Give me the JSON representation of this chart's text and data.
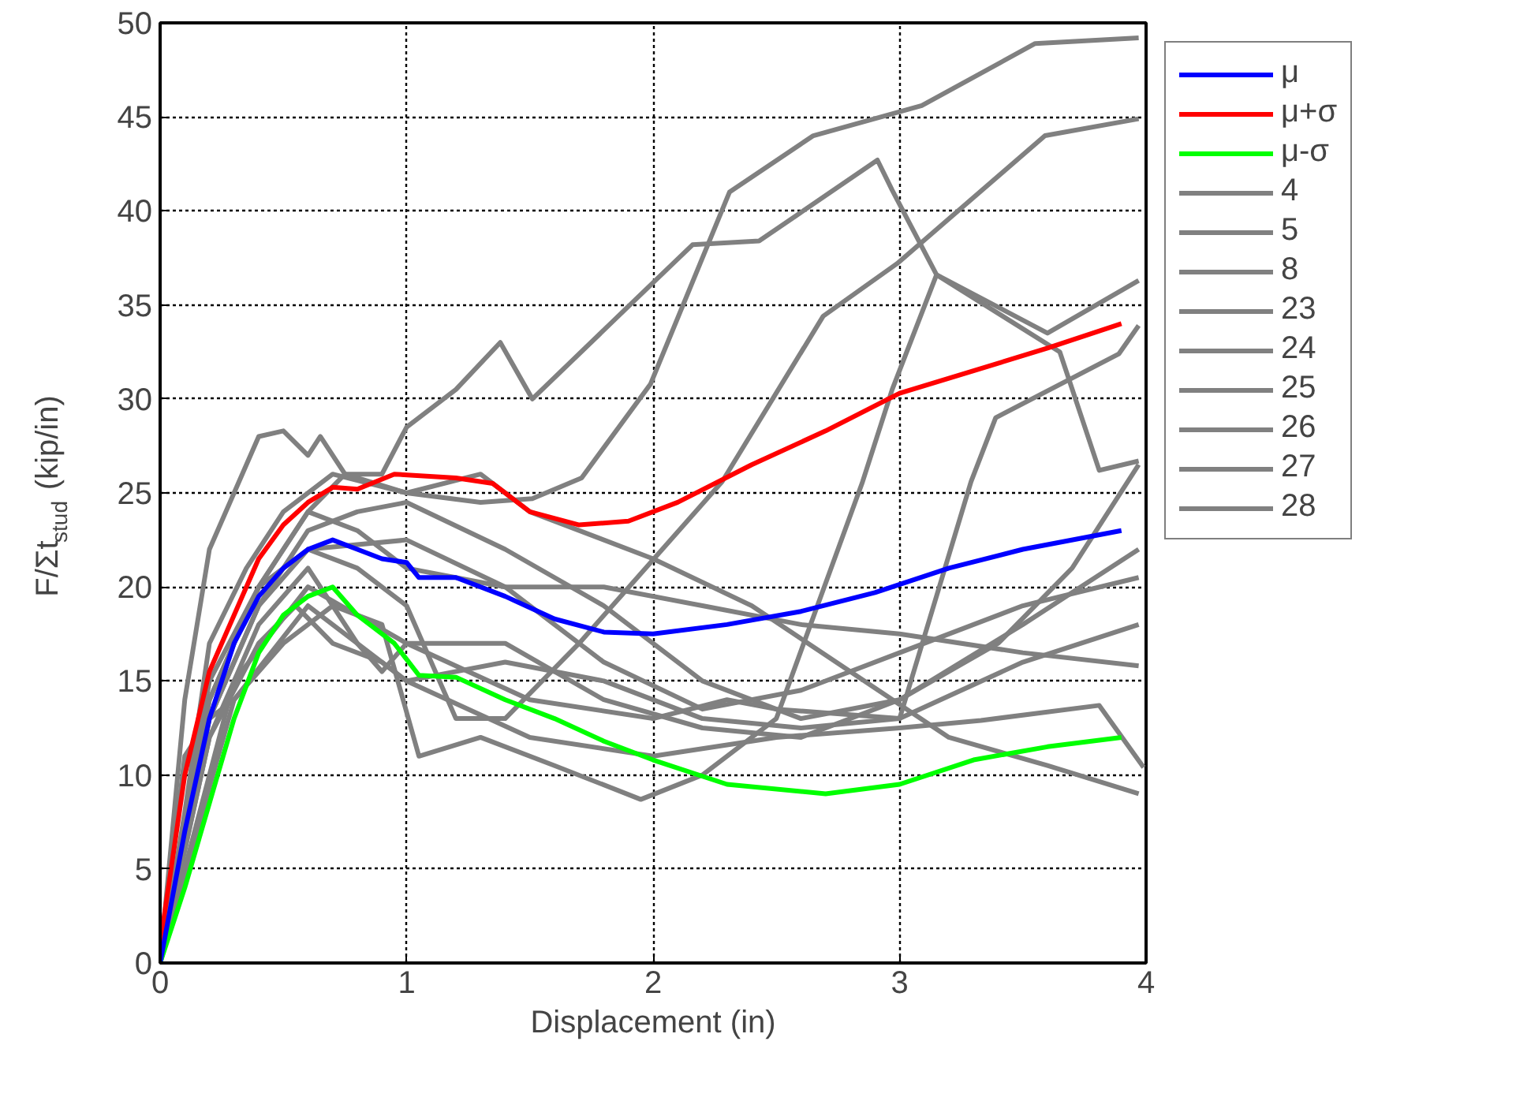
{
  "chart_data": {
    "type": "line",
    "xlabel": "Displacement (in)",
    "ylabel": "F/Σt$_{stud}$ (kip/in)",
    "xlim": [
      0,
      4
    ],
    "ylim": [
      0,
      50
    ],
    "xticks": [
      0,
      1,
      2,
      3,
      4
    ],
    "yticks": [
      0,
      5,
      10,
      15,
      20,
      25,
      30,
      35,
      40,
      45,
      50
    ],
    "grid": true,
    "legend": "right",
    "marker": "none",
    "line_style": "solid",
    "series": [
      {
        "name": "μ",
        "color": "#0000ff",
        "x": [
          0,
          0.1,
          0.2,
          0.3,
          0.4,
          0.5,
          0.6,
          0.7,
          0.8,
          0.9,
          1.0,
          1.05,
          1.2,
          1.4,
          1.6,
          1.8,
          2.0,
          2.3,
          2.6,
          2.9,
          3.2,
          3.5,
          3.9
        ],
        "values": [
          0,
          7,
          13,
          17,
          19.5,
          21,
          22,
          22.5,
          22,
          21.5,
          21.3,
          20.5,
          20.5,
          19.5,
          18.3,
          17.6,
          17.5,
          18,
          18.7,
          19.7,
          21,
          22,
          23
        ]
      },
      {
        "name": "μ+σ",
        "color": "#ff0000",
        "x": [
          0,
          0.1,
          0.2,
          0.3,
          0.4,
          0.5,
          0.6,
          0.7,
          0.8,
          0.95,
          1.2,
          1.35,
          1.5,
          1.7,
          1.9,
          2.1,
          2.4,
          2.7,
          3.0,
          3.3,
          3.6,
          3.9
        ],
        "values": [
          1,
          10,
          15.5,
          18.5,
          21.5,
          23.3,
          24.5,
          25.3,
          25.2,
          26,
          25.8,
          25.5,
          24,
          23.3,
          23.5,
          24.5,
          26.5,
          28.3,
          30.3,
          31.5,
          32.7,
          34
        ]
      },
      {
        "name": "μ-σ",
        "color": "#00ff00",
        "x": [
          0,
          0.1,
          0.2,
          0.3,
          0.4,
          0.5,
          0.6,
          0.7,
          0.8,
          0.95,
          1.05,
          1.2,
          1.4,
          1.6,
          1.8,
          2.0,
          2.3,
          2.7,
          3.0,
          3.3,
          3.6,
          3.9
        ],
        "values": [
          0,
          4,
          8.5,
          13,
          16.5,
          18.5,
          19.5,
          20,
          18.5,
          17,
          15.3,
          15.2,
          14,
          13,
          11.8,
          10.8,
          9.5,
          9,
          9.5,
          10.8,
          11.5,
          12
        ]
      },
      {
        "name": "4",
        "color": "#808080",
        "x": [
          0,
          0.1,
          0.2,
          0.3,
          0.4,
          0.5,
          0.6,
          0.65,
          0.75,
          0.9,
          1.0,
          1.2,
          1.38,
          1.51,
          1.93,
          2.16,
          2.43,
          2.91,
          2.97,
          3.15,
          3.65,
          3.81,
          3.97
        ],
        "values": [
          0,
          14,
          22,
          25,
          28,
          28.3,
          27,
          28,
          26,
          26,
          28.5,
          30.5,
          33,
          30,
          35.3,
          38.2,
          38.4,
          42.7,
          41.1,
          36.6,
          32.5,
          26.2,
          26.7
        ]
      },
      {
        "name": "5",
        "color": "#808080",
        "x": [
          0,
          0.1,
          0.2,
          0.35,
          0.5,
          0.7,
          1.0,
          1.3,
          1.51,
          1.71,
          1.99,
          2.31,
          2.65,
          3.09,
          3.55,
          3.97
        ],
        "values": [
          0,
          8,
          17,
          21,
          24,
          26,
          25,
          24.5,
          24.7,
          25.8,
          30.8,
          41,
          44,
          45.6,
          48.9,
          49.2
        ]
      },
      {
        "name": "8",
        "color": "#808080",
        "x": [
          0,
          0.2,
          0.4,
          0.6,
          0.8,
          1.0,
          1.2,
          1.4,
          1.7,
          2.28,
          2.69,
          2.99,
          3.59,
          3.97
        ],
        "values": [
          0,
          15,
          20,
          22,
          21,
          19,
          13,
          13,
          17,
          25.6,
          34.4,
          37.2,
          44,
          44.9
        ]
      },
      {
        "name": "23",
        "color": "#808080",
        "x": [
          0,
          0.2,
          0.4,
          0.6,
          0.75,
          1.0,
          1.3,
          1.5,
          2.0,
          2.4,
          2.8,
          3.2,
          3.6,
          3.97
        ],
        "values": [
          0,
          14,
          20,
          24,
          26,
          25,
          26,
          24,
          21.5,
          19,
          15.5,
          12,
          10.5,
          9
        ]
      },
      {
        "name": "24",
        "color": "#808080",
        "x": [
          0,
          0.2,
          0.4,
          0.6,
          0.8,
          1.0,
          1.4,
          1.8,
          2.2,
          2.6,
          3.0,
          3.4,
          3.7,
          3.97
        ],
        "values": [
          0,
          13,
          19,
          23,
          24,
          24.5,
          22,
          19,
          15,
          13,
          14,
          17,
          21,
          26.5
        ]
      },
      {
        "name": "25",
        "color": "#808080",
        "x": [
          0,
          0.2,
          0.4,
          0.6,
          0.8,
          0.9,
          1.0,
          1.4,
          1.8,
          2.2,
          2.6,
          3.0,
          3.5,
          3.97
        ],
        "values": [
          0,
          12,
          18,
          21,
          17,
          15.5,
          17,
          17,
          14,
          12.5,
          12,
          14,
          18,
          22
        ]
      },
      {
        "name": "26",
        "color": "#808080",
        "x": [
          0,
          0.2,
          0.4,
          0.6,
          1.0,
          1.4,
          1.8,
          2.2,
          2.6,
          3.0,
          3.5,
          3.97
        ],
        "values": [
          0,
          13,
          19,
          22,
          22.5,
          20,
          16,
          13.5,
          14.5,
          16.5,
          19,
          20.5
        ]
      },
      {
        "name": "27",
        "color": "#808080",
        "x": [
          0,
          0.2,
          0.4,
          0.55,
          0.7,
          0.9,
          1.0,
          1.4,
          1.8,
          2.2,
          2.6,
          3.0,
          3.5,
          3.97
        ],
        "values": [
          0,
          12,
          17,
          19,
          17,
          16,
          15,
          16,
          15,
          13,
          12.5,
          13,
          16,
          18
        ]
      },
      {
        "name": "28",
        "color": "#808080",
        "x": [
          0,
          0.2,
          0.4,
          0.6,
          0.8,
          1.0,
          1.4,
          1.8,
          2.2,
          2.6,
          3.0,
          3.5,
          3.97
        ],
        "values": [
          0,
          14,
          20,
          24,
          23,
          21,
          20,
          20,
          19,
          18,
          17.5,
          16.5,
          15.8
        ]
      },
      {
        "color": "#808080",
        "x": [
          0,
          0.1,
          0.2,
          0.3,
          0.5,
          0.7,
          0.9,
          1.05,
          1.3,
          1.6,
          1.95,
          2.2,
          2.5,
          2.85,
          2.97,
          3.15,
          3.6,
          3.97
        ],
        "values": [
          0,
          11,
          13,
          14,
          17,
          19,
          18,
          11,
          12,
          10.5,
          8.7,
          10,
          13,
          25.6,
          30.5,
          36.6,
          33.5,
          36.3
        ]
      },
      {
        "color": "#808080",
        "x": [
          0,
          0.3,
          0.6,
          1.0,
          1.5,
          2.0,
          2.3,
          2.5,
          3.0,
          3.29,
          3.39,
          3.89,
          3.97
        ],
        "values": [
          0,
          15,
          20,
          17,
          14,
          13,
          14,
          13.5,
          13,
          25.6,
          29,
          32.4,
          33.9
        ]
      },
      {
        "color": "#808080",
        "x": [
          0,
          0.3,
          0.6,
          1.0,
          1.5,
          2.0,
          2.5,
          3.0,
          3.33,
          3.81,
          3.99
        ],
        "values": [
          0,
          14,
          19,
          15,
          12,
          11,
          12,
          12.5,
          12.9,
          13.7,
          10.4
        ]
      }
    ]
  }
}
